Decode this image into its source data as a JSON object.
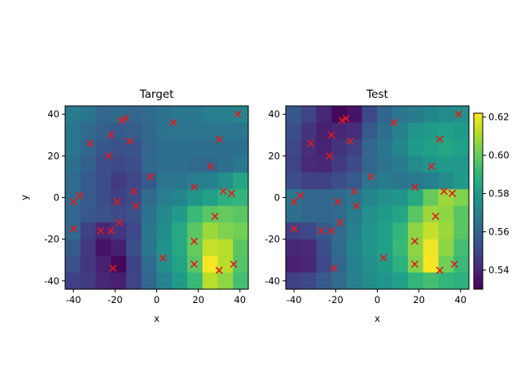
{
  "chart_data": [
    {
      "type": "heatmap",
      "title": "Target",
      "xlabel": "x",
      "ylabel": "y",
      "xlim": [
        -44,
        44
      ],
      "ylim": [
        -44,
        44
      ],
      "xticks": [
        -40,
        -20,
        0,
        20,
        40
      ],
      "yticks": [
        -40,
        -20,
        0,
        20,
        40
      ],
      "grid_extent": [
        -44,
        44,
        -44,
        44
      ],
      "grid_rows_top_to_bottom": [
        [
          0.568,
          0.566,
          0.56,
          0.562,
          0.56,
          0.562,
          0.565,
          0.567,
          0.567,
          0.569,
          0.57,
          0.572
        ],
        [
          0.566,
          0.562,
          0.558,
          0.556,
          0.557,
          0.561,
          0.565,
          0.566,
          0.566,
          0.566,
          0.566,
          0.566
        ],
        [
          0.566,
          0.56,
          0.555,
          0.553,
          0.554,
          0.56,
          0.563,
          0.564,
          0.563,
          0.563,
          0.563,
          0.564
        ],
        [
          0.564,
          0.558,
          0.552,
          0.55,
          0.552,
          0.561,
          0.563,
          0.563,
          0.562,
          0.561,
          0.563,
          0.567
        ],
        [
          0.562,
          0.556,
          0.552,
          0.546,
          0.55,
          0.556,
          0.566,
          0.566,
          0.569,
          0.57,
          0.576,
          0.584
        ],
        [
          0.562,
          0.556,
          0.552,
          0.548,
          0.551,
          0.562,
          0.569,
          0.572,
          0.578,
          0.582,
          0.588,
          0.59
        ],
        [
          0.56,
          0.555,
          0.553,
          0.551,
          0.553,
          0.565,
          0.573,
          0.58,
          0.592,
          0.598,
          0.6,
          0.598
        ],
        [
          0.561,
          0.548,
          0.54,
          0.545,
          0.55,
          0.567,
          0.575,
          0.585,
          0.598,
          0.608,
          0.604,
          0.602
        ],
        [
          0.556,
          0.545,
          0.535,
          0.538,
          0.552,
          0.566,
          0.577,
          0.585,
          0.6,
          0.614,
          0.612,
          0.598
        ],
        [
          0.553,
          0.545,
          0.538,
          0.532,
          0.548,
          0.562,
          0.575,
          0.583,
          0.598,
          0.621,
          0.612,
          0.597
        ],
        [
          0.548,
          0.546,
          0.54,
          0.538,
          0.549,
          0.56,
          0.571,
          0.58,
          0.592,
          0.612,
          0.606,
          0.594
        ]
      ],
      "points": [
        {
          "x": 39,
          "y": 40
        },
        {
          "x": -15,
          "y": 38
        },
        {
          "x": -17,
          "y": 37
        },
        {
          "x": 8,
          "y": 36
        },
        {
          "x": -22,
          "y": 30
        },
        {
          "x": 30,
          "y": 28
        },
        {
          "x": -13,
          "y": 27
        },
        {
          "x": -32,
          "y": 26
        },
        {
          "x": -23,
          "y": 20
        },
        {
          "x": 26,
          "y": 15
        },
        {
          "x": -3,
          "y": 10
        },
        {
          "x": 18,
          "y": 5
        },
        {
          "x": -11,
          "y": 3
        },
        {
          "x": 32,
          "y": 3
        },
        {
          "x": 36,
          "y": 2
        },
        {
          "x": -37,
          "y": 1
        },
        {
          "x": -40,
          "y": -2
        },
        {
          "x": -19,
          "y": -2
        },
        {
          "x": -10,
          "y": -4
        },
        {
          "x": 28,
          "y": -9
        },
        {
          "x": -18,
          "y": -12
        },
        {
          "x": -40,
          "y": -15
        },
        {
          "x": -27,
          "y": -16
        },
        {
          "x": -22,
          "y": -16
        },
        {
          "x": 18,
          "y": -21
        },
        {
          "x": 3,
          "y": -29
        },
        {
          "x": 18,
          "y": -32
        },
        {
          "x": 37,
          "y": -32
        },
        {
          "x": -21,
          "y": -34
        },
        {
          "x": 30,
          "y": -35
        }
      ],
      "marker": "x",
      "marker_color": "#e31a1c"
    },
    {
      "type": "heatmap",
      "title": "Test",
      "xlabel": "x",
      "ylabel": "",
      "xlim": [
        -44,
        44
      ],
      "ylim": [
        -44,
        44
      ],
      "xticks": [
        -40,
        -20,
        0,
        20,
        40
      ],
      "yticks": [
        -40,
        -20,
        0,
        20,
        40
      ],
      "grid_extent": [
        -44,
        44,
        -44,
        44
      ],
      "grid_rows_top_to_bottom": [
        [
          0.555,
          0.549,
          0.54,
          0.532,
          0.535,
          0.55,
          0.56,
          0.566,
          0.568,
          0.572,
          0.574,
          0.576
        ],
        [
          0.552,
          0.544,
          0.538,
          0.54,
          0.542,
          0.556,
          0.564,
          0.57,
          0.578,
          0.58,
          0.582,
          0.58
        ],
        [
          0.55,
          0.542,
          0.539,
          0.544,
          0.548,
          0.56,
          0.566,
          0.572,
          0.58,
          0.582,
          0.584,
          0.582
        ],
        [
          0.549,
          0.541,
          0.54,
          0.546,
          0.551,
          0.56,
          0.565,
          0.568,
          0.574,
          0.578,
          0.58,
          0.579
        ],
        [
          0.552,
          0.548,
          0.548,
          0.552,
          0.556,
          0.566,
          0.568,
          0.566,
          0.568,
          0.57,
          0.574,
          0.58
        ],
        [
          0.566,
          0.56,
          0.56,
          0.562,
          0.566,
          0.572,
          0.576,
          0.578,
          0.585,
          0.6,
          0.608,
          0.604
        ],
        [
          0.564,
          0.56,
          0.56,
          0.562,
          0.568,
          0.576,
          0.58,
          0.584,
          0.598,
          0.608,
          0.606,
          0.598
        ],
        [
          0.548,
          0.55,
          0.556,
          0.562,
          0.57,
          0.578,
          0.582,
          0.59,
          0.606,
          0.614,
          0.608,
          0.598
        ],
        [
          0.54,
          0.541,
          0.552,
          0.562,
          0.572,
          0.578,
          0.582,
          0.592,
          0.606,
          0.62,
          0.606,
          0.594
        ],
        [
          0.538,
          0.54,
          0.55,
          0.56,
          0.57,
          0.576,
          0.58,
          0.588,
          0.604,
          0.621,
          0.602,
          0.592
        ],
        [
          0.548,
          0.55,
          0.556,
          0.562,
          0.57,
          0.575,
          0.578,
          0.582,
          0.59,
          0.594,
          0.59,
          0.588
        ]
      ],
      "points": [
        {
          "x": 39,
          "y": 40
        },
        {
          "x": -15,
          "y": 38
        },
        {
          "x": -17,
          "y": 37
        },
        {
          "x": 8,
          "y": 36
        },
        {
          "x": -22,
          "y": 30
        },
        {
          "x": 30,
          "y": 28
        },
        {
          "x": -13,
          "y": 27
        },
        {
          "x": -32,
          "y": 26
        },
        {
          "x": -23,
          "y": 20
        },
        {
          "x": 26,
          "y": 15
        },
        {
          "x": -3,
          "y": 10
        },
        {
          "x": 18,
          "y": 5
        },
        {
          "x": -11,
          "y": 3
        },
        {
          "x": 32,
          "y": 3
        },
        {
          "x": 36,
          "y": 2
        },
        {
          "x": -37,
          "y": 1
        },
        {
          "x": -40,
          "y": -2
        },
        {
          "x": -19,
          "y": -2
        },
        {
          "x": -10,
          "y": -4
        },
        {
          "x": 28,
          "y": -9
        },
        {
          "x": -18,
          "y": -12
        },
        {
          "x": -40,
          "y": -15
        },
        {
          "x": -27,
          "y": -16
        },
        {
          "x": -22,
          "y": -16
        },
        {
          "x": 18,
          "y": -21
        },
        {
          "x": 3,
          "y": -29
        },
        {
          "x": 18,
          "y": -32
        },
        {
          "x": 37,
          "y": -32
        },
        {
          "x": -21,
          "y": -34
        },
        {
          "x": 30,
          "y": -35
        }
      ],
      "marker": "x",
      "marker_color": "#e31a1c"
    }
  ],
  "colorbar": {
    "colormap": "viridis",
    "vmin": 0.53,
    "vmax": 0.622,
    "ticks": [
      0.54,
      0.56,
      0.58,
      0.6,
      0.62
    ],
    "tick_labels": [
      "0.54",
      "0.56",
      "0.58",
      "0.60",
      "0.62"
    ]
  }
}
